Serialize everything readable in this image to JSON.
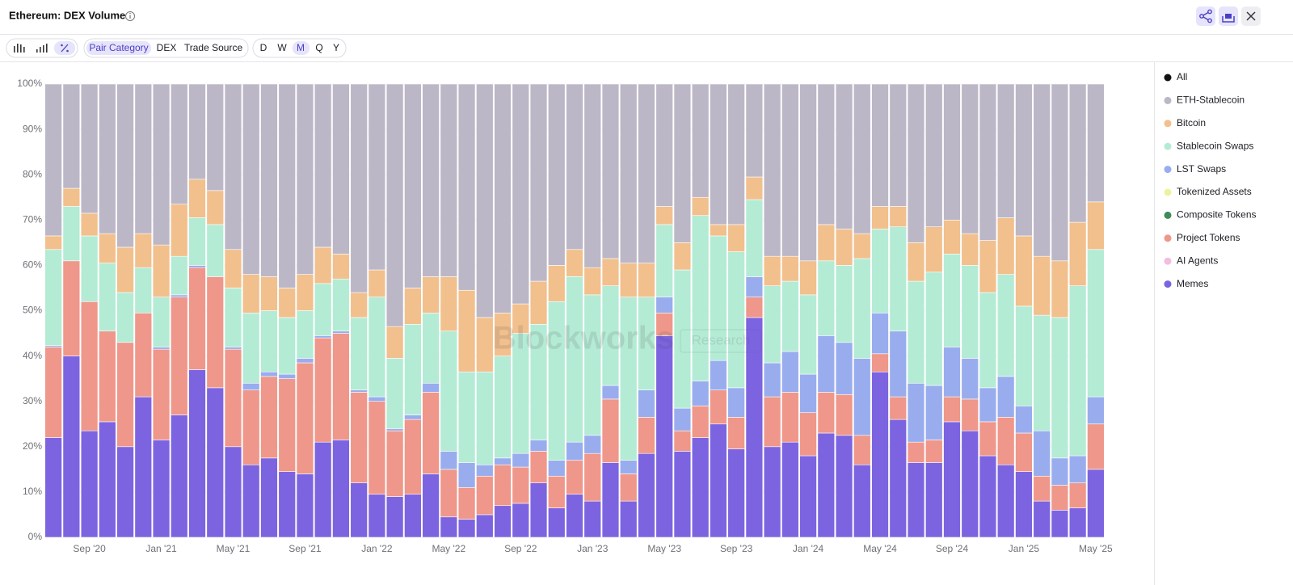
{
  "header": {
    "title": "Ethereum: DEX Volume"
  },
  "toolbar": {
    "groupings": [
      "Pair Category",
      "DEX",
      "Trade Source"
    ],
    "periods": [
      "D",
      "W",
      "M",
      "Q",
      "Y"
    ]
  },
  "legend_all": {
    "name": "All",
    "color": "#111111"
  },
  "watermark": [
    "Blockworks",
    "Research"
  ],
  "chart_data": {
    "type": "stacked_bar",
    "categories": [
      null,
      null,
      "Sep '20",
      null,
      null,
      null,
      "Jan '21",
      null,
      null,
      null,
      "May '21",
      null,
      null,
      null,
      "Sep '21",
      null,
      null,
      null,
      "Jan '22",
      null,
      null,
      null,
      "May '22",
      null,
      null,
      null,
      "Sep '22",
      null,
      null,
      null,
      "Jan '23",
      null,
      null,
      null,
      "May '23",
      null,
      null,
      null,
      "Sep '23",
      null,
      null,
      null,
      "Jan '24",
      null,
      null,
      null,
      "May '24",
      null,
      null,
      null,
      "Sep '24",
      null,
      null,
      null,
      "Jan '25",
      null,
      null,
      null,
      "May '25"
    ],
    "ylim": [
      0,
      100
    ],
    "yticks": [
      {
        "value": 0,
        "label": "0%"
      },
      {
        "value": 10,
        "label": "10%"
      },
      {
        "value": 20,
        "label": "20%"
      },
      {
        "value": 30,
        "label": "30%"
      },
      {
        "value": 40,
        "label": "40%"
      },
      {
        "value": 50,
        "label": "50%"
      },
      {
        "value": 60,
        "label": "60%"
      },
      {
        "value": 70,
        "label": "70%"
      },
      {
        "value": 80,
        "label": "80%"
      },
      {
        "value": 90,
        "label": "90%"
      },
      {
        "value": 100,
        "label": "100%"
      }
    ],
    "grid": true,
    "legend": "right",
    "series": [
      {
        "name": "ETH-Stablecoin",
        "color": "#bcb7c6",
        "values": [
          33.5,
          23,
          28.5,
          33,
          36,
          33,
          35.5,
          26.5,
          21,
          23.5,
          36.5,
          42,
          42.5,
          45,
          42,
          36,
          37.5,
          46,
          41,
          53.5,
          45,
          42.5,
          42.5,
          45.5,
          51.5,
          50.5,
          48.5,
          43.5,
          40,
          36.5,
          40.5,
          38.5,
          39.5,
          39.5,
          27,
          35,
          25,
          31,
          31,
          20.5,
          38,
          38,
          39,
          31,
          32,
          33,
          27,
          27,
          35,
          31.5,
          30,
          33,
          34.5,
          29.5,
          33.5,
          38,
          39,
          30.5,
          26
        ]
      },
      {
        "name": "Bitcoin",
        "color": "#f1c08d",
        "values": [
          3,
          4,
          5,
          6.5,
          10,
          7.5,
          11.5,
          11.5,
          8.5,
          7.5,
          8.5,
          8.5,
          7.5,
          6.5,
          8,
          8,
          5.5,
          5.5,
          6,
          7,
          8,
          8,
          12,
          18,
          12,
          9.5,
          6.5,
          9.5,
          8,
          6,
          6,
          6,
          7.5,
          7.5,
          4,
          6,
          4,
          2.5,
          6,
          5,
          6.5,
          5.5,
          7.5,
          8,
          8,
          5.5,
          5,
          4.5,
          8.5,
          10,
          7.5,
          7,
          11.5,
          12.5,
          15.5,
          13,
          12.5,
          14,
          10.5
        ]
      },
      {
        "name": "Stablecoin Swaps",
        "color": "#b4ebd5",
        "values": [
          21.2,
          12,
          14.5,
          15,
          11,
          10,
          11,
          8.5,
          10.5,
          11.5,
          13,
          15.5,
          13.5,
          12.5,
          10.5,
          11.5,
          11.5,
          16,
          22,
          15.5,
          20,
          15.5,
          26.5,
          20,
          20.5,
          22.5,
          26.5,
          25.5,
          35,
          36.5,
          31,
          22,
          36,
          20.5,
          16,
          30.5,
          36.5,
          27.5,
          30,
          17,
          17,
          15.5,
          17.5,
          16.5,
          17,
          22,
          18.5,
          23,
          22.5,
          25,
          20.5,
          20.5,
          21,
          22.5,
          22,
          25.5,
          31,
          37.5,
          32.5
        ]
      },
      {
        "name": "LST Swaps",
        "color": "#99adee",
        "values": [
          0.3,
          0,
          0,
          0,
          0,
          0,
          0.5,
          0.5,
          0.5,
          0,
          0.5,
          1.5,
          1,
          1,
          1,
          0.5,
          0.5,
          0.5,
          1,
          0.5,
          1,
          2,
          4,
          5.5,
          2.5,
          1.5,
          3,
          2.5,
          3.5,
          4,
          4,
          3,
          3,
          6,
          3.5,
          5,
          5.5,
          6.5,
          6.5,
          4.5,
          7.5,
          9,
          8.5,
          12.5,
          11.5,
          17,
          9,
          14.5,
          13,
          12,
          11,
          9,
          7.5,
          9,
          6,
          10,
          6,
          6,
          6
        ]
      },
      {
        "name": "Tokenized Assets",
        "color": "#eef29c",
        "values": [
          0,
          0,
          0,
          0,
          0,
          0,
          0,
          0,
          0,
          0,
          0,
          0,
          0,
          0,
          0,
          0,
          0,
          0,
          0,
          0,
          0,
          0,
          0,
          0,
          0,
          0,
          0,
          0,
          0,
          0,
          0,
          0,
          0,
          0,
          0,
          0,
          0,
          0,
          0,
          0,
          0,
          0,
          0,
          0,
          0,
          0,
          0,
          0,
          0,
          0,
          0,
          0,
          0,
          0,
          0,
          0,
          0,
          0,
          0
        ]
      },
      {
        "name": "Composite Tokens",
        "color": "#3f8a5a",
        "values": [
          0,
          0,
          0,
          0,
          0,
          0,
          0,
          0,
          0,
          0,
          0,
          0,
          0,
          0,
          0,
          0,
          0,
          0,
          0,
          0,
          0,
          0,
          0,
          0,
          0,
          0,
          0,
          0,
          0,
          0,
          0,
          0,
          0,
          0,
          0,
          0,
          0,
          0,
          0,
          0,
          0,
          0,
          0,
          0,
          0,
          0,
          0,
          0,
          0,
          0,
          0,
          0,
          0,
          0,
          0,
          0,
          0,
          0,
          0
        ]
      },
      {
        "name": "Project Tokens",
        "color": "#ef978a",
        "values": [
          20,
          21,
          28.5,
          20,
          23,
          18.5,
          20,
          26,
          22.5,
          24.5,
          21.5,
          16.5,
          18,
          20.5,
          24.5,
          23,
          23.5,
          20,
          20.5,
          14.5,
          16.5,
          18,
          10.5,
          7,
          8.5,
          9,
          8,
          7,
          7,
          7.5,
          10.5,
          14,
          6,
          8,
          5,
          4.5,
          7,
          7.5,
          7,
          4.5,
          11,
          11,
          9.5,
          9,
          9,
          6.5,
          4,
          5,
          4.5,
          5,
          5.5,
          7,
          7.5,
          10.5,
          8.5,
          5.5,
          5.5,
          5.5,
          10
        ]
      },
      {
        "name": "AI Agents",
        "color": "#f2bde0",
        "values": [
          0,
          0,
          0,
          0,
          0,
          0,
          0,
          0,
          0,
          0,
          0,
          0,
          0,
          0,
          0,
          0,
          0,
          0,
          0,
          0,
          0,
          0,
          0,
          0,
          0,
          0,
          0,
          0,
          0,
          0,
          0,
          0,
          0,
          0,
          0,
          0,
          0,
          0,
          0,
          0,
          0,
          0,
          0,
          0,
          0,
          0,
          0,
          0,
          0,
          0,
          0,
          0,
          0,
          0,
          0,
          0,
          0,
          0,
          0
        ]
      },
      {
        "name": "Memes",
        "color": "#7c64e0",
        "values": [
          22,
          40,
          23.5,
          25.5,
          20,
          31,
          21.5,
          27,
          37,
          33,
          20,
          16,
          17.5,
          14.5,
          14,
          21,
          21.5,
          12,
          9.5,
          9,
          9.5,
          14,
          4.5,
          4,
          5,
          7,
          7.5,
          12,
          6.5,
          9.5,
          8,
          16.5,
          8,
          18.5,
          44.5,
          19,
          22,
          25,
          19.5,
          48.5,
          20,
          21,
          18,
          23,
          22.5,
          16,
          36.5,
          26,
          16.5,
          16.5,
          25.5,
          23.5,
          18,
          16,
          14.5,
          8,
          6,
          6.5,
          15
        ]
      }
    ]
  }
}
